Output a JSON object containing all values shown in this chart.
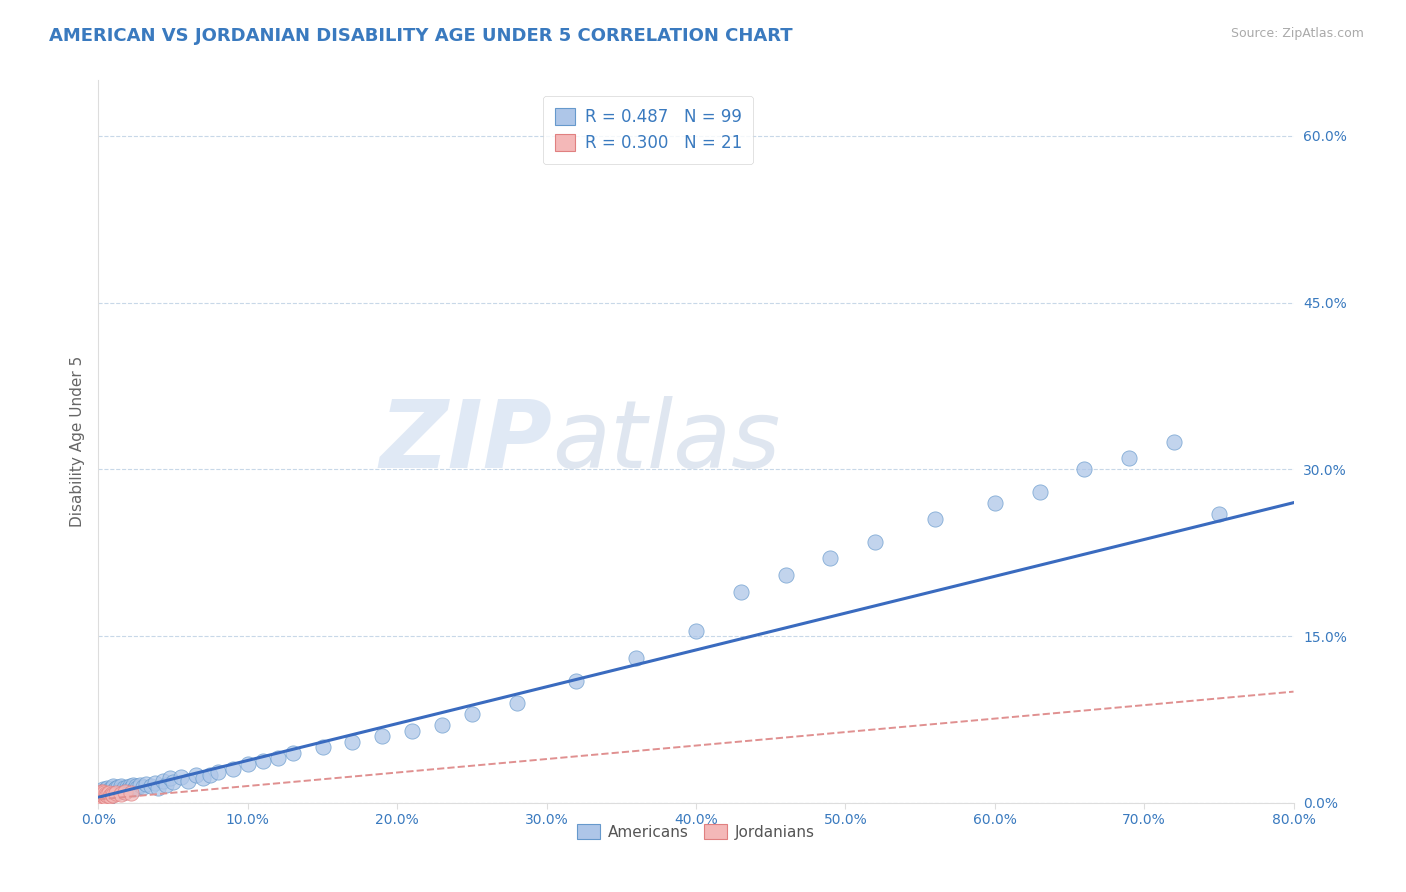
{
  "title": "AMERICAN VS JORDANIAN DISABILITY AGE UNDER 5 CORRELATION CHART",
  "source": "Source: ZipAtlas.com",
  "ylabel": "Disability Age Under 5",
  "watermark_zip": "ZIP",
  "watermark_atlas": "atlas",
  "xlim": [
    0.0,
    0.8
  ],
  "ylim": [
    0.0,
    0.65
  ],
  "xticks": [
    0.0,
    0.1,
    0.2,
    0.3,
    0.4,
    0.5,
    0.6,
    0.7,
    0.8
  ],
  "xtick_labels": [
    "0.0%",
    "10.0%",
    "20.0%",
    "30.0%",
    "40.0%",
    "50.0%",
    "60.0%",
    "70.0%",
    "80.0%"
  ],
  "ytick_positions": [
    0.0,
    0.15,
    0.3,
    0.45,
    0.6
  ],
  "ytick_labels": [
    "0.0%",
    "15.0%",
    "30.0%",
    "45.0%",
    "60.0%"
  ],
  "title_color": "#3a7abf",
  "ylabel_color": "#666666",
  "tick_color": "#3a7abf",
  "source_color": "#aaaaaa",
  "american_face_color": "#aec6e8",
  "american_edge_color": "#6699cc",
  "jordanian_face_color": "#f4b8b8",
  "jordanian_edge_color": "#e08080",
  "am_line_color": "#3a6bbf",
  "jo_line_color": "#e09090",
  "legend_R_american": "0.487",
  "legend_N_american": "99",
  "legend_R_jordanian": "0.300",
  "legend_N_jordanian": "21",
  "am_line_y0": 0.005,
  "am_line_y1": 0.27,
  "jo_line_y0": 0.003,
  "jo_line_y1": 0.1,
  "american_x": [
    0.001,
    0.001,
    0.001,
    0.001,
    0.002,
    0.002,
    0.002,
    0.002,
    0.002,
    0.003,
    0.003,
    0.003,
    0.003,
    0.003,
    0.004,
    0.004,
    0.004,
    0.004,
    0.005,
    0.005,
    0.005,
    0.005,
    0.005,
    0.006,
    0.006,
    0.006,
    0.007,
    0.007,
    0.007,
    0.008,
    0.008,
    0.008,
    0.009,
    0.009,
    0.01,
    0.01,
    0.01,
    0.011,
    0.011,
    0.012,
    0.012,
    0.013,
    0.013,
    0.014,
    0.015,
    0.015,
    0.016,
    0.017,
    0.018,
    0.019,
    0.02,
    0.021,
    0.022,
    0.023,
    0.024,
    0.025,
    0.026,
    0.028,
    0.03,
    0.032,
    0.035,
    0.038,
    0.04,
    0.043,
    0.045,
    0.048,
    0.05,
    0.055,
    0.06,
    0.065,
    0.07,
    0.075,
    0.08,
    0.09,
    0.1,
    0.11,
    0.12,
    0.13,
    0.15,
    0.17,
    0.19,
    0.21,
    0.23,
    0.25,
    0.28,
    0.32,
    0.36,
    0.4,
    0.43,
    0.46,
    0.49,
    0.52,
    0.56,
    0.6,
    0.63,
    0.66,
    0.69,
    0.72,
    0.75
  ],
  "american_y": [
    0.005,
    0.007,
    0.003,
    0.009,
    0.005,
    0.008,
    0.003,
    0.006,
    0.01,
    0.004,
    0.007,
    0.01,
    0.006,
    0.012,
    0.005,
    0.009,
    0.007,
    0.011,
    0.005,
    0.008,
    0.01,
    0.012,
    0.006,
    0.007,
    0.01,
    0.013,
    0.008,
    0.011,
    0.005,
    0.009,
    0.012,
    0.007,
    0.01,
    0.013,
    0.008,
    0.011,
    0.015,
    0.009,
    0.012,
    0.01,
    0.013,
    0.011,
    0.014,
    0.01,
    0.012,
    0.015,
    0.011,
    0.013,
    0.01,
    0.014,
    0.012,
    0.015,
    0.013,
    0.016,
    0.012,
    0.015,
    0.013,
    0.016,
    0.014,
    0.017,
    0.015,
    0.018,
    0.013,
    0.02,
    0.016,
    0.022,
    0.019,
    0.023,
    0.02,
    0.025,
    0.022,
    0.025,
    0.028,
    0.03,
    0.035,
    0.038,
    0.04,
    0.045,
    0.05,
    0.055,
    0.06,
    0.065,
    0.07,
    0.08,
    0.09,
    0.11,
    0.13,
    0.155,
    0.19,
    0.205,
    0.22,
    0.235,
    0.255,
    0.27,
    0.28,
    0.3,
    0.31,
    0.325,
    0.26
  ],
  "jordanian_x": [
    0.001,
    0.001,
    0.001,
    0.002,
    0.002,
    0.002,
    0.003,
    0.003,
    0.004,
    0.004,
    0.005,
    0.005,
    0.006,
    0.007,
    0.008,
    0.009,
    0.01,
    0.012,
    0.015,
    0.018,
    0.022
  ],
  "jordanian_y": [
    0.005,
    0.008,
    0.003,
    0.006,
    0.01,
    0.004,
    0.007,
    0.01,
    0.006,
    0.009,
    0.005,
    0.008,
    0.007,
    0.009,
    0.006,
    0.008,
    0.007,
    0.009,
    0.008,
    0.01,
    0.009
  ]
}
